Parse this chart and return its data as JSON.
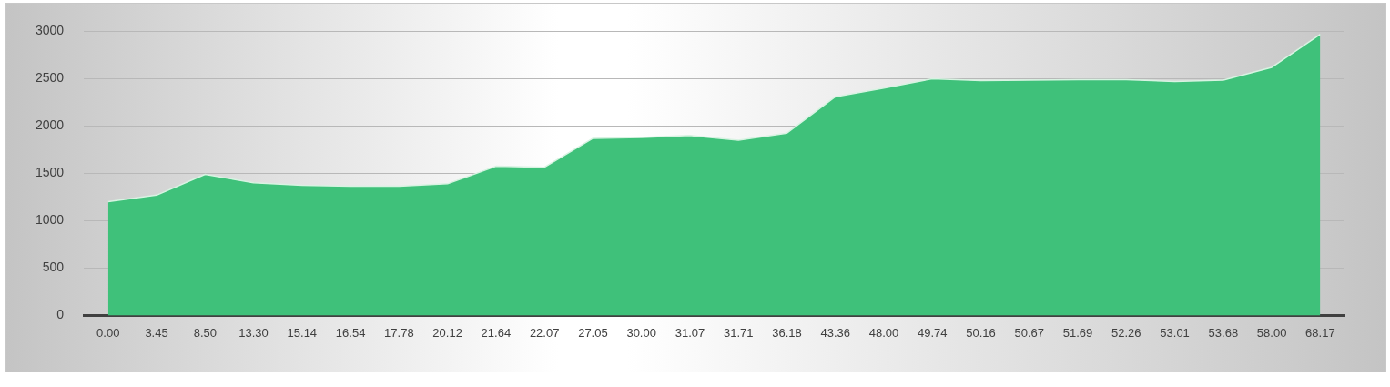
{
  "chart_data": {
    "type": "area",
    "categories": [
      "0.00",
      "3.45",
      "8.50",
      "13.30",
      "15.14",
      "16.54",
      "17.78",
      "20.12",
      "21.64",
      "22.07",
      "27.05",
      "30.00",
      "31.07",
      "31.71",
      "36.18",
      "43.36",
      "48.00",
      "49.74",
      "50.16",
      "50.67",
      "51.69",
      "52.26",
      "53.01",
      "53.68",
      "58.00",
      "68.17"
    ],
    "series": [
      {
        "color": "#3fc17a",
        "values": [
          1200,
          1270,
          1490,
          1400,
          1375,
          1365,
          1365,
          1390,
          1575,
          1565,
          1870,
          1880,
          1900,
          1850,
          1925,
          2310,
          2400,
          2500,
          2480,
          2485,
          2490,
          2490,
          2470,
          2485,
          2620,
          2970
        ]
      }
    ],
    "ylim": [
      0,
      3000
    ],
    "yticks": [
      0,
      500,
      1000,
      1500,
      2000,
      2500,
      3000
    ],
    "grid": "y",
    "legend": false
  }
}
